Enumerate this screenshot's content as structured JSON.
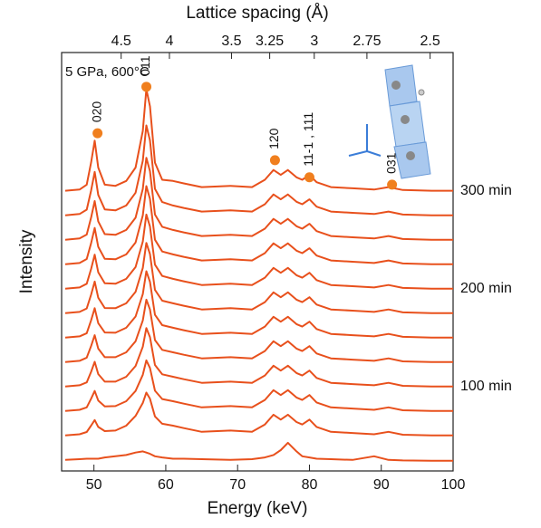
{
  "chart_data": {
    "type": "line",
    "title": "Lattice spacing (Å)",
    "xlabel": "Energy (keV)",
    "ylabel": "Intensity",
    "annotation": "5 GPa, 600°C",
    "xlim": [
      45.5,
      100
    ],
    "xticks": [
      50,
      60,
      70,
      80,
      90,
      100
    ],
    "x2lim": [
      5.32,
      2.42
    ],
    "x2scale": "reciprocal",
    "x2ticks": [
      4.5,
      4,
      3.5,
      3.25,
      3,
      2.75,
      2.5
    ],
    "ylim": [
      0,
      17.1
    ],
    "color": "#e8501c",
    "marker_color": "#f07f1e",
    "x": [
      46,
      48,
      49,
      49.6,
      50.1,
      50.6,
      51.5,
      53,
      54.5,
      55.8,
      56.8,
      57.3,
      57.8,
      58.5,
      59.5,
      61,
      62.5,
      65,
      69,
      72,
      73.8,
      75,
      76,
      77,
      78.2,
      79,
      80,
      81,
      83,
      86,
      89,
      91,
      93,
      97,
      100
    ],
    "series": [
      {
        "values": [
          0.45,
          0.48,
          0.5,
          0.5,
          0.5,
          0.5,
          0.55,
          0.6,
          0.65,
          0.75,
          0.8,
          0.75,
          0.7,
          0.6,
          0.55,
          0.5,
          0.5,
          0.48,
          0.45,
          0.48,
          0.55,
          0.65,
          0.85,
          1.15,
          0.8,
          0.6,
          0.55,
          0.5,
          0.48,
          0.45,
          0.6,
          0.45,
          0.43,
          0.42,
          0.42
        ]
      },
      {
        "values": [
          1.45,
          1.5,
          1.59,
          1.85,
          2.08,
          1.8,
          1.63,
          1.65,
          1.85,
          2.25,
          2.78,
          3.2,
          2.95,
          2.23,
          1.93,
          1.85,
          1.75,
          1.6,
          1.65,
          1.6,
          1.9,
          2.3,
          2.1,
          2.3,
          2.0,
          1.9,
          2.1,
          1.8,
          1.6,
          1.55,
          1.5,
          1.6,
          1.48,
          1.45,
          1.45
        ]
      },
      {
        "values": [
          2.45,
          2.5,
          2.6,
          2.95,
          3.27,
          2.88,
          2.64,
          2.65,
          2.85,
          3.27,
          3.93,
          4.52,
          4.21,
          3.28,
          2.94,
          2.85,
          2.75,
          2.6,
          2.65,
          2.6,
          2.9,
          3.3,
          3.1,
          3.3,
          3.0,
          2.9,
          3.1,
          2.8,
          2.6,
          2.55,
          2.5,
          2.6,
          2.48,
          2.45,
          2.45
        ]
      },
      {
        "name": "100 min",
        "values": [
          3.45,
          3.5,
          3.62,
          4.05,
          4.46,
          3.96,
          3.65,
          3.65,
          3.85,
          4.29,
          5.08,
          5.84,
          5.47,
          4.33,
          3.95,
          3.85,
          3.75,
          3.6,
          3.65,
          3.6,
          3.9,
          4.3,
          4.1,
          4.3,
          4.0,
          3.9,
          4.1,
          3.8,
          3.6,
          3.55,
          3.5,
          3.6,
          3.48,
          3.45,
          3.45
        ]
      },
      {
        "values": [
          4.45,
          4.5,
          4.63,
          5.1,
          5.55,
          5.0,
          4.65,
          4.65,
          4.85,
          5.3,
          6.15,
          7.0,
          6.6,
          5.35,
          4.95,
          4.85,
          4.75,
          4.6,
          4.65,
          4.6,
          4.9,
          5.3,
          5.1,
          5.3,
          5.0,
          4.9,
          5.1,
          4.8,
          4.6,
          4.55,
          4.5,
          4.6,
          4.48,
          4.45,
          4.45
        ]
      },
      {
        "values": [
          5.45,
          5.5,
          5.63,
          6.15,
          6.65,
          6.04,
          5.66,
          5.65,
          5.85,
          6.31,
          7.23,
          8.16,
          7.73,
          6.38,
          5.96,
          5.85,
          5.75,
          5.6,
          5.65,
          5.6,
          5.9,
          6.3,
          6.1,
          6.3,
          6.0,
          5.9,
          6.1,
          5.8,
          5.6,
          5.55,
          5.5,
          5.6,
          5.48,
          5.45,
          5.45
        ]
      },
      {
        "values": [
          6.45,
          6.5,
          6.64,
          7.2,
          7.74,
          7.08,
          6.66,
          6.65,
          6.85,
          7.32,
          8.3,
          9.32,
          8.86,
          7.4,
          6.96,
          6.85,
          6.75,
          6.6,
          6.65,
          6.6,
          6.9,
          7.3,
          7.1,
          7.3,
          7.0,
          6.9,
          7.1,
          6.8,
          6.6,
          6.55,
          6.5,
          6.6,
          6.48,
          6.45,
          6.45
        ]
      },
      {
        "name": "200 min",
        "values": [
          7.45,
          7.5,
          7.65,
          8.25,
          8.84,
          8.12,
          7.67,
          7.65,
          7.85,
          8.33,
          9.38,
          10.48,
          9.99,
          8.43,
          7.97,
          7.85,
          7.75,
          7.6,
          7.65,
          7.6,
          7.9,
          8.3,
          8.1,
          8.3,
          8.0,
          7.9,
          8.1,
          7.8,
          7.6,
          7.55,
          7.5,
          7.6,
          7.48,
          7.45,
          7.45
        ]
      },
      {
        "values": [
          8.45,
          8.5,
          8.66,
          9.3,
          9.93,
          9.16,
          8.67,
          8.65,
          8.85,
          9.34,
          10.45,
          11.64,
          11.12,
          9.45,
          8.97,
          8.85,
          8.75,
          8.6,
          8.65,
          8.6,
          8.9,
          9.3,
          9.1,
          9.3,
          9.0,
          8.9,
          9.1,
          8.8,
          8.6,
          8.55,
          8.5,
          8.6,
          8.48,
          8.45,
          8.45
        ]
      },
      {
        "values": [
          9.45,
          9.5,
          9.66,
          10.35,
          11.03,
          10.2,
          9.68,
          9.65,
          9.85,
          10.35,
          11.53,
          12.8,
          12.25,
          10.48,
          9.98,
          9.85,
          9.75,
          9.6,
          9.65,
          9.6,
          9.9,
          10.3,
          10.1,
          10.3,
          10.0,
          9.9,
          10.1,
          9.8,
          9.6,
          9.55,
          9.5,
          9.6,
          9.48,
          9.45,
          9.45
        ]
      },
      {
        "values": [
          10.45,
          10.5,
          10.68,
          11.45,
          12.22,
          11.28,
          10.69,
          10.65,
          10.85,
          11.37,
          12.68,
          14.12,
          13.51,
          11.53,
          10.99,
          10.85,
          10.75,
          10.6,
          10.65,
          10.6,
          10.9,
          11.3,
          11.1,
          11.3,
          11.0,
          10.9,
          11.1,
          10.8,
          10.6,
          10.55,
          10.5,
          10.6,
          10.48,
          10.45,
          10.45
        ]
      },
      {
        "name": "300 min",
        "values": [
          11.45,
          11.5,
          11.7,
          12.6,
          13.5,
          12.4,
          11.7,
          11.65,
          11.85,
          12.4,
          13.9,
          15.6,
          14.9,
          12.6,
          11.9,
          11.85,
          11.75,
          11.6,
          11.65,
          11.6,
          11.9,
          12.3,
          12.1,
          12.3,
          12.0,
          11.9,
          12.1,
          11.8,
          11.6,
          11.55,
          11.5,
          11.6,
          11.48,
          11.45,
          11.45
        ]
      }
    ],
    "peaks": [
      {
        "text": "020",
        "x": 50.5,
        "y": 13.8
      },
      {
        "text": "011",
        "x": 57.3,
        "y": 15.7
      },
      {
        "text": "120",
        "x": 75.2,
        "y": 12.7
      },
      {
        "text": "11-1 , 111",
        "x": 80,
        "y": 12.0
      },
      {
        "text": "031",
        "x": 91.5,
        "y": 11.7
      }
    ]
  }
}
